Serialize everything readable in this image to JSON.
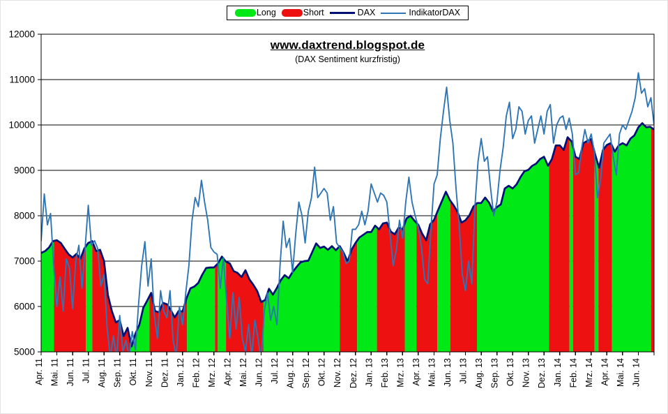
{
  "chart_data": {
    "type": "area+line",
    "title": "www.daxtrend.blogspot.de",
    "subtitle": "(DAX Sentiment kurzfristig)",
    "xlabel": "",
    "ylabel": "",
    "grid": "horizontal",
    "legend_position": "top-center",
    "ylim": [
      5000,
      12000
    ],
    "ytick_step": 1000,
    "yticks": [
      5000,
      6000,
      7000,
      8000,
      9000,
      10000,
      11000,
      12000
    ],
    "x_range": [
      0,
      39
    ],
    "x_unit": "months from Apr 2011, one tick per month",
    "categories": [
      "Apr. 11",
      "Mai. 11",
      "Jun. 11",
      "Jul. 11",
      "Aug. 11",
      "Sep. 11",
      "Okt. 11",
      "Nov. 11",
      "Dez. 11",
      "Jan. 12",
      "Feb. 12",
      "Mrz. 12",
      "Apr. 12",
      "Mai. 12",
      "Jun. 12",
      "Jul. 12",
      "Aug. 12",
      "Sep. 12",
      "Okt. 12",
      "Nov. 12",
      "Dez. 12",
      "Jan. 13",
      "Feb. 13",
      "Mrz. 13",
      "Apr. 13",
      "Mai. 13",
      "Jun. 13",
      "Jul. 13",
      "Aug. 13",
      "Sep. 13",
      "Okt. 13",
      "Nov. 13",
      "Dez. 13",
      "Jan. 14",
      "Feb. 14",
      "Mrz. 14",
      "Apr. 14",
      "Mai. 14",
      "Jun. 14"
    ],
    "colors": {
      "long": "#00E816",
      "short": "#EE1111",
      "dax": "#001074",
      "indikator": "#2E75B6",
      "grid": "#000000",
      "axis": "#000000",
      "background": "#FFFFFF"
    },
    "legend": [
      {
        "label": "Long",
        "type": "swatch",
        "color": "#00E816"
      },
      {
        "label": "Short",
        "type": "swatch",
        "color": "#EE1111"
      },
      {
        "label": "DAX",
        "type": "line",
        "color": "#001074",
        "width": 3
      },
      {
        "label": "IndikatorDAX",
        "type": "line",
        "color": "#2E75B6",
        "width": 2
      }
    ],
    "signal_segments": [
      {
        "from": 0.0,
        "to": 0.81,
        "signal": "long"
      },
      {
        "from": 0.81,
        "to": 2.85,
        "signal": "short"
      },
      {
        "from": 2.85,
        "to": 3.25,
        "signal": "long"
      },
      {
        "from": 3.25,
        "to": 5.69,
        "signal": "short"
      },
      {
        "from": 5.69,
        "to": 6.9,
        "signal": "long"
      },
      {
        "from": 6.9,
        "to": 9.28,
        "signal": "short"
      },
      {
        "from": 9.28,
        "to": 11.06,
        "signal": "long"
      },
      {
        "from": 11.06,
        "to": 11.24,
        "signal": "short"
      },
      {
        "from": 11.24,
        "to": 11.76,
        "signal": "long"
      },
      {
        "from": 11.76,
        "to": 14.15,
        "signal": "short"
      },
      {
        "from": 14.15,
        "to": 19.0,
        "signal": "long"
      },
      {
        "from": 19.0,
        "to": 20.11,
        "signal": "short"
      },
      {
        "from": 20.11,
        "to": 21.37,
        "signal": "long"
      },
      {
        "from": 21.37,
        "to": 23.14,
        "signal": "short"
      },
      {
        "from": 23.14,
        "to": 23.88,
        "signal": "long"
      },
      {
        "from": 23.88,
        "to": 25.21,
        "signal": "short"
      },
      {
        "from": 25.21,
        "to": 26.03,
        "signal": "long"
      },
      {
        "from": 26.03,
        "to": 27.73,
        "signal": "short"
      },
      {
        "from": 27.73,
        "to": 32.32,
        "signal": "long"
      },
      {
        "from": 32.32,
        "to": 33.62,
        "signal": "short"
      },
      {
        "from": 33.62,
        "to": 33.84,
        "signal": "long"
      },
      {
        "from": 33.84,
        "to": 35.21,
        "signal": "short"
      },
      {
        "from": 35.21,
        "to": 35.46,
        "signal": "long"
      },
      {
        "from": 35.46,
        "to": 36.32,
        "signal": "short"
      },
      {
        "from": 36.32,
        "to": 38.81,
        "signal": "long"
      },
      {
        "from": 38.81,
        "to": 39.0,
        "signal": "short"
      }
    ],
    "series": [
      {
        "name": "DAX",
        "type": "line",
        "x0": 0,
        "dx": 0.25,
        "values": [
          7180,
          7220,
          7300,
          7440,
          7460,
          7400,
          7270,
          7150,
          7080,
          7160,
          7050,
          7280,
          7400,
          7440,
          7220,
          7250,
          7000,
          6250,
          5900,
          5650,
          5700,
          5350,
          5530,
          5120,
          5400,
          5600,
          5970,
          6130,
          6300,
          5900,
          5870,
          6080,
          6050,
          5920,
          5760,
          5900,
          5890,
          6180,
          6400,
          6440,
          6520,
          6700,
          6850,
          6860,
          6860,
          6950,
          7100,
          6990,
          6950,
          6780,
          6740,
          6650,
          6800,
          6600,
          6480,
          6340,
          6100,
          6140,
          6390,
          6260,
          6410,
          6580,
          6690,
          6620,
          6760,
          6870,
          6970,
          7000,
          7010,
          7200,
          7390,
          7290,
          7320,
          7250,
          7330,
          7240,
          7330,
          7180,
          6990,
          7250,
          7400,
          7520,
          7580,
          7640,
          7640,
          7780,
          7700,
          7830,
          7850,
          7650,
          7590,
          7740,
          7700,
          7940,
          8000,
          7890,
          7800,
          7600,
          7460,
          7810,
          7910,
          8120,
          8320,
          8530,
          8350,
          8230,
          8080,
          7850,
          7900,
          8010,
          8200,
          8280,
          8280,
          8400,
          8290,
          8100,
          8190,
          8250,
          8600,
          8660,
          8600,
          8690,
          8850,
          8980,
          9010,
          9100,
          9150,
          9250,
          9300,
          9100,
          9250,
          9550,
          9550,
          9450,
          9730,
          9640,
          9300,
          9250,
          9600,
          9650,
          9690,
          9350,
          9060,
          9450,
          9560,
          9600,
          9410,
          9550,
          9600,
          9550,
          9700,
          9770,
          9950,
          10040,
          9950,
          9960,
          9900
        ]
      },
      {
        "name": "IndikatorDAX",
        "type": "line",
        "x0": 0,
        "dx": 0.2,
        "values": [
          7450,
          8480,
          7800,
          8050,
          6900,
          6000,
          6650,
          5900,
          7050,
          6850,
          5950,
          7000,
          7350,
          6400,
          7300,
          8230,
          7350,
          7450,
          7280,
          6450,
          6700,
          5500,
          4900,
          5350,
          4850,
          5800,
          5000,
          5250,
          4900,
          5450,
          5050,
          6050,
          6900,
          7430,
          6450,
          7050,
          5800,
          5300,
          6350,
          5900,
          5750,
          6350,
          5250,
          4900,
          6000,
          5600,
          6300,
          6900,
          7900,
          8400,
          8200,
          8780,
          8300,
          7900,
          7300,
          7200,
          7150,
          6400,
          7080,
          6100,
          5300,
          6300,
          5500,
          6200,
          5300,
          5000,
          5600,
          4900,
          5700,
          5300,
          4800,
          5900,
          6300,
          5700,
          6000,
          5600,
          6900,
          7880,
          7300,
          7500,
          6750,
          7600,
          8300,
          8000,
          7400,
          8100,
          8400,
          9070,
          8400,
          8500,
          8600,
          8500,
          7900,
          8200,
          7400,
          7300,
          7200,
          6950,
          7000,
          7700,
          7700,
          7800,
          8100,
          7800,
          8100,
          8700,
          8500,
          8300,
          8500,
          8450,
          8300,
          7600,
          6900,
          7250,
          7900,
          7500,
          8300,
          8850,
          8300,
          8000,
          7750,
          7300,
          6600,
          6500,
          7700,
          8700,
          8900,
          9700,
          10300,
          10830,
          10100,
          9600,
          8600,
          7800,
          6700,
          6350,
          7000,
          6500,
          8200,
          9200,
          9700,
          9200,
          9300,
          8600,
          8000,
          8300,
          9000,
          9500,
          10200,
          10500,
          9700,
          9900,
          10400,
          10300,
          9800,
          10100,
          10200,
          9600,
          9900,
          10200,
          9800,
          10300,
          10450,
          9600,
          10000,
          10150,
          10200,
          9900,
          10150,
          9800,
          8900,
          8950,
          9500,
          9900,
          9600,
          9800,
          9400,
          8400,
          8800,
          9600,
          9700,
          9800,
          9300,
          8900,
          9800,
          10000,
          9900,
          10100,
          10300,
          10600,
          11150,
          10700,
          10800,
          10400,
          10600,
          10000
        ]
      }
    ]
  }
}
